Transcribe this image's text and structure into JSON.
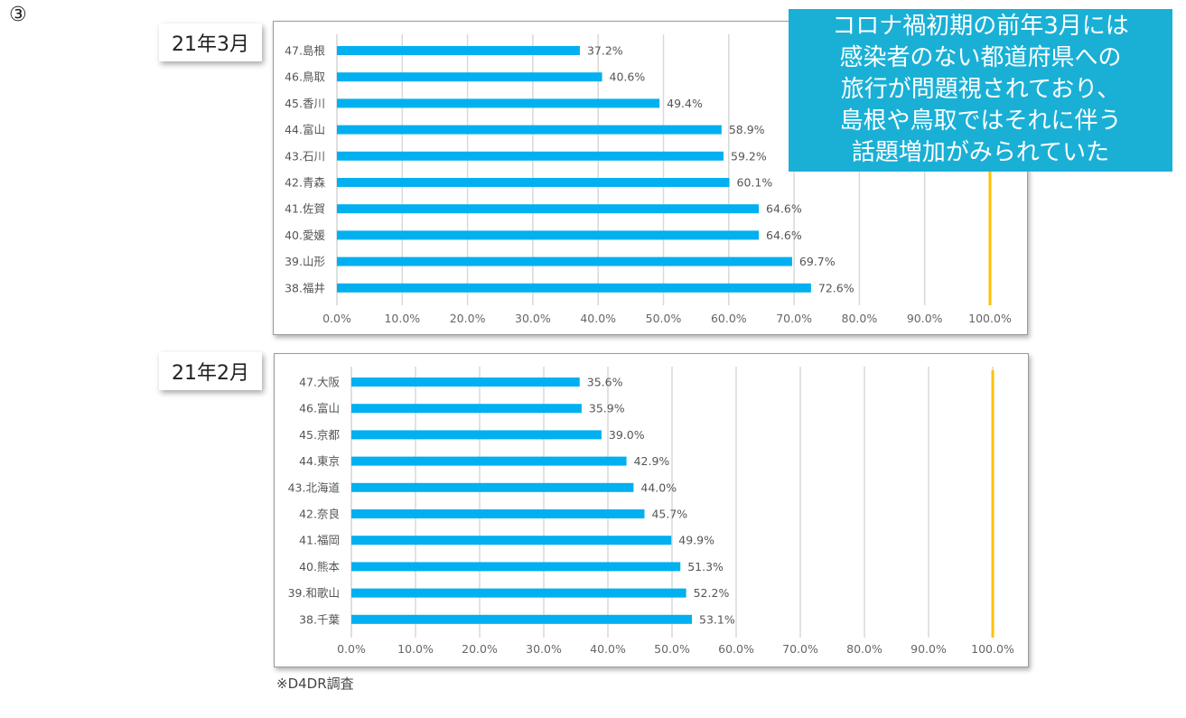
{
  "marker": "③",
  "chart_data": [
    {
      "type": "bar",
      "orientation": "horizontal",
      "title": "21年3月",
      "categories": [
        "47.島根",
        "46.鳥取",
        "45.香川",
        "44.富山",
        "43.石川",
        "42.青森",
        "41.佐賀",
        "40.愛媛",
        "39.山形",
        "38.福井"
      ],
      "values": [
        37.2,
        40.6,
        49.4,
        58.9,
        59.2,
        60.1,
        64.6,
        64.6,
        69.7,
        72.6
      ],
      "value_labels": [
        "37.2%",
        "40.6%",
        "49.4%",
        "58.9%",
        "59.2%",
        "60.1%",
        "64.6%",
        "64.6%",
        "69.7%",
        "72.6%"
      ],
      "xlim": [
        0,
        100
      ],
      "x_ticks": [
        "0.0%",
        "10.0%",
        "20.0%",
        "30.0%",
        "40.0%",
        "50.0%",
        "60.0%",
        "70.0%",
        "80.0%",
        "90.0%",
        "100.0%"
      ],
      "reference_line": 100,
      "grid": true,
      "bar_color": "#00b0f0",
      "reference_color": "#ffc000"
    },
    {
      "type": "bar",
      "orientation": "horizontal",
      "title": "21年2月",
      "categories": [
        "47.大阪",
        "46.富山",
        "45.京都",
        "44.東京",
        "43.北海道",
        "42.奈良",
        "41.福岡",
        "40.熊本",
        "39.和歌山",
        "38.千葉"
      ],
      "values": [
        35.6,
        35.9,
        39.0,
        42.9,
        44.0,
        45.7,
        49.9,
        51.3,
        52.2,
        53.1
      ],
      "value_labels": [
        "35.6%",
        "35.9%",
        "39.0%",
        "42.9%",
        "44.0%",
        "45.7%",
        "49.9%",
        "51.3%",
        "52.2%",
        "53.1%"
      ],
      "xlim": [
        0,
        100
      ],
      "x_ticks": [
        "0.0%",
        "10.0%",
        "20.0%",
        "30.0%",
        "40.0%",
        "50.0%",
        "60.0%",
        "70.0%",
        "80.0%",
        "90.0%",
        "100.0%"
      ],
      "reference_line": 100,
      "grid": true,
      "bar_color": "#00b0f0",
      "reference_color": "#ffc000"
    }
  ],
  "callout": {
    "lines": [
      "コロナ禍初期の前年3月には",
      "感染者のない都道府県への",
      "旅行が問題視されており、",
      "島根や鳥取ではそれに伴う",
      "話題増加がみられていた"
    ],
    "color": "#1ab0d6"
  },
  "note": "※D4DR調査"
}
